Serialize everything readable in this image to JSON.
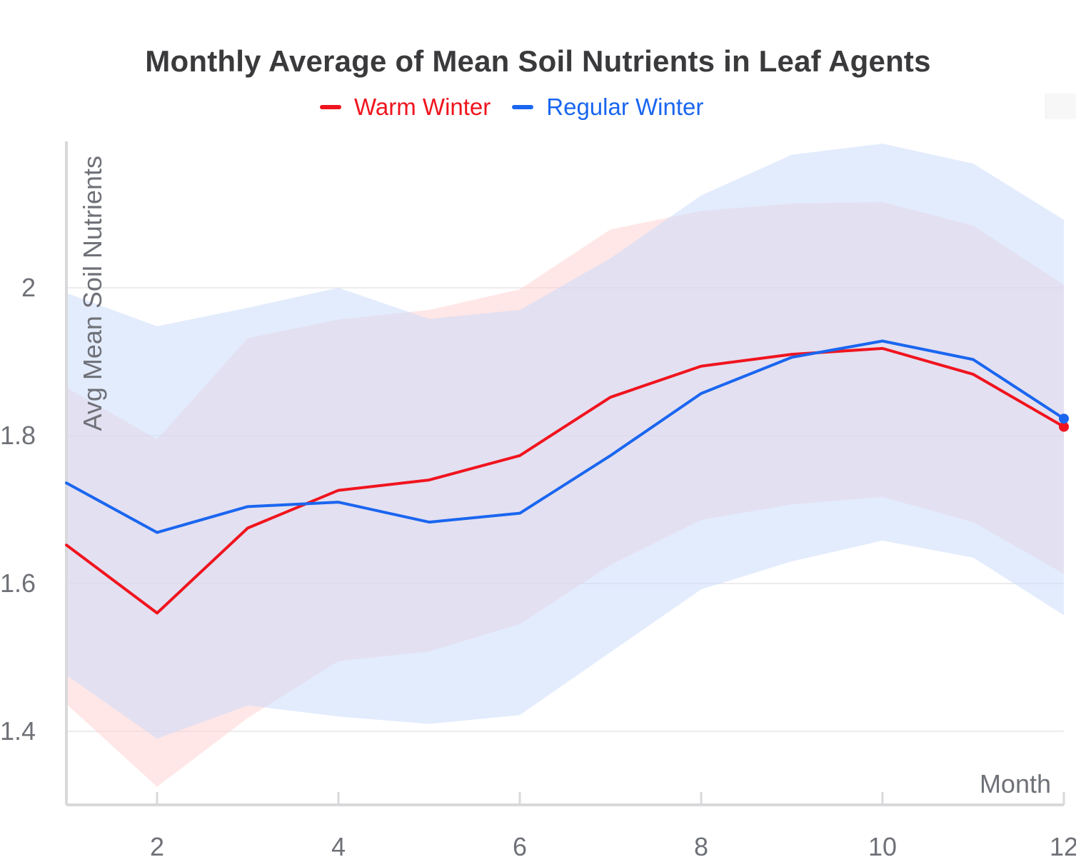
{
  "chart_data": {
    "type": "line",
    "title": "Monthly Average of Mean Soil Nutrients in Leaf Agents",
    "xlabel": "Month",
    "ylabel": "Avg Mean Soil Nutrients",
    "x": [
      1,
      2,
      3,
      4,
      5,
      6,
      7,
      8,
      9,
      10,
      11,
      12
    ],
    "xlim": [
      1,
      12
    ],
    "ylim": [
      1.3,
      2.2
    ],
    "x_ticks": [
      2,
      4,
      6,
      8,
      10,
      12
    ],
    "y_ticks": [
      1.4,
      1.6,
      1.8,
      2
    ],
    "grid": true,
    "legend_position": "top",
    "series": [
      {
        "name": "Warm Winter",
        "color": "#f0141e",
        "band_color": "#ffd0d0",
        "values": [
          1.652,
          1.56,
          1.675,
          1.726,
          1.74,
          1.773,
          1.852,
          1.894,
          1.91,
          1.918,
          1.883,
          1.812
        ],
        "upper": [
          1.865,
          1.795,
          1.932,
          1.957,
          1.97,
          1.998,
          2.079,
          2.104,
          2.114,
          2.116,
          2.084,
          2.004
        ],
        "lower": [
          1.437,
          1.325,
          1.418,
          1.495,
          1.508,
          1.545,
          1.625,
          1.686,
          1.707,
          1.717,
          1.683,
          1.613
        ]
      },
      {
        "name": "Regular Winter",
        "color": "#1a66f0",
        "band_color": "#c7dafc",
        "values": [
          1.736,
          1.669,
          1.704,
          1.71,
          1.683,
          1.695,
          1.773,
          1.857,
          1.906,
          1.928,
          1.903,
          1.823
        ],
        "upper": [
          1.993,
          1.948,
          1.973,
          2.0,
          1.958,
          1.97,
          2.04,
          2.125,
          2.18,
          2.195,
          2.168,
          2.092
        ],
        "lower": [
          1.476,
          1.39,
          1.435,
          1.42,
          1.41,
          1.422,
          1.507,
          1.592,
          1.63,
          1.658,
          1.635,
          1.557
        ]
      }
    ]
  }
}
